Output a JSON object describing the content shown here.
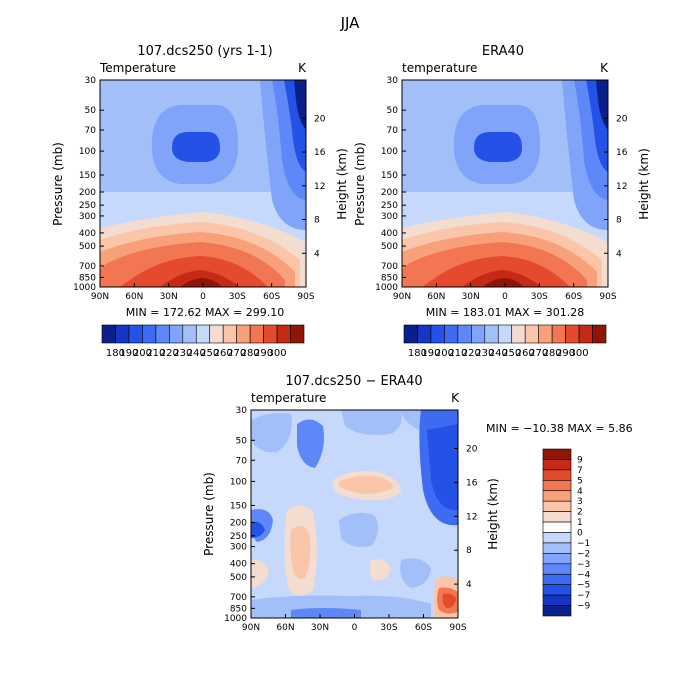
{
  "figure": {
    "title": "JJA"
  },
  "panels": {
    "left": {
      "title": "107.dcs250 (yrs 1-1)",
      "var_label": "Temperature",
      "units": "K",
      "stats": "MIN = 172.62   MAX = 299.10"
    },
    "right": {
      "title": "ERA40",
      "var_label": "temperature",
      "units": "K",
      "stats": "MIN = 183.01   MAX = 301.28"
    },
    "diff": {
      "title": "107.dcs250 − ERA40",
      "var_label": "temperature",
      "units": "K",
      "stats": "MIN = −10.38   MAX =    5.86"
    }
  },
  "axes": {
    "ylabel": "Pressure (mb)",
    "y2label": "Height (km)",
    "pressure_ticks": [
      "30",
      "50",
      "70",
      "100",
      "150",
      "200",
      "250",
      "300",
      "400",
      "500",
      "700",
      "850",
      "1000"
    ],
    "height_ticks": [
      "20",
      "16",
      "12",
      "8",
      "4"
    ],
    "lat_ticks": [
      "90N",
      "60N",
      "30N",
      "0",
      "30S",
      "60S",
      "90S"
    ]
  },
  "colorbar_abs": {
    "labels": [
      "180",
      "190",
      "200",
      "210",
      "220",
      "230",
      "240",
      "250",
      "260",
      "270",
      "280",
      "290",
      "300"
    ],
    "colors": [
      "#0a1f8a",
      "#1535c4",
      "#2452e6",
      "#3d6cf2",
      "#5e88f7",
      "#7fa4f9",
      "#a3bff9",
      "#c6d8fb",
      "#f3dcd0",
      "#fbc5aa",
      "#f8a07a",
      "#f27652",
      "#e44a2e",
      "#c42a16",
      "#8e1508"
    ]
  },
  "colorbar_diff": {
    "labels": [
      "9",
      "7",
      "5",
      "4",
      "3",
      "2",
      "1",
      "0",
      "−1",
      "−2",
      "−3",
      "−4",
      "−5",
      "−7",
      "−9"
    ],
    "colors": [
      "#8e1508",
      "#c42a16",
      "#e44a2e",
      "#f27652",
      "#f8a07a",
      "#fbc5aa",
      "#f3dcd0",
      "#ffffff",
      "#c6d8fb",
      "#a3bff9",
      "#7fa4f9",
      "#5e88f7",
      "#3d6cf2",
      "#2452e6",
      "#1535c4",
      "#0a1f8a"
    ]
  },
  "chart_data": [
    {
      "type": "heatmap",
      "title": "107.dcs250 (yrs 1-1)",
      "xlabel": "",
      "ylabel": "Pressure (mb)",
      "x": [
        "90N",
        "60N",
        "30N",
        "0",
        "30S",
        "60S",
        "90S"
      ],
      "y": [
        30,
        50,
        70,
        100,
        150,
        200,
        250,
        300,
        400,
        500,
        700,
        850,
        1000
      ],
      "units": "K",
      "min": 172.62,
      "max": 299.1
    },
    {
      "type": "heatmap",
      "title": "ERA40",
      "xlabel": "",
      "ylabel": "Pressure (mb)",
      "x": [
        "90N",
        "60N",
        "30N",
        "0",
        "30S",
        "60S",
        "90S"
      ],
      "y": [
        30,
        50,
        70,
        100,
        150,
        200,
        250,
        300,
        400,
        500,
        700,
        850,
        1000
      ],
      "units": "K",
      "min": 183.01,
      "max": 301.28
    },
    {
      "type": "heatmap",
      "title": "107.dcs250 − ERA40",
      "xlabel": "",
      "ylabel": "Pressure (mb)",
      "x": [
        "90N",
        "60N",
        "30N",
        "0",
        "30S",
        "60S",
        "90S"
      ],
      "y": [
        30,
        50,
        70,
        100,
        150,
        200,
        250,
        300,
        400,
        500,
        700,
        850,
        1000
      ],
      "units": "K",
      "min": -10.38,
      "max": 5.86
    }
  ]
}
